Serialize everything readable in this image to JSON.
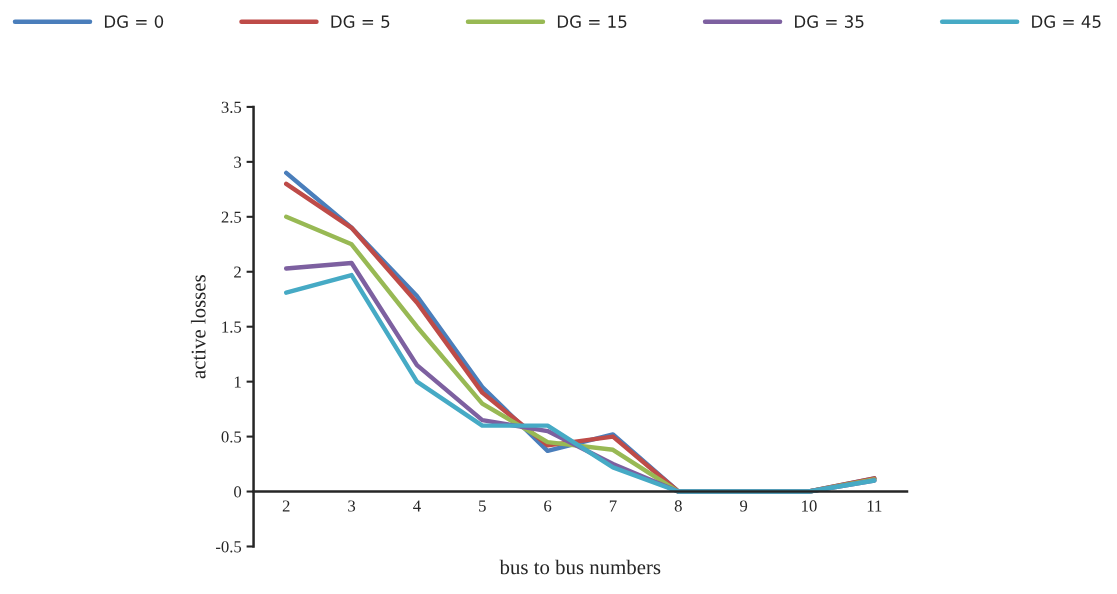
{
  "chart_data": {
    "type": "line",
    "xlabel": "bus to bus numbers",
    "ylabel": "active losses",
    "categories": [
      "2",
      "3",
      "4",
      "5",
      "6",
      "7",
      "8",
      "9",
      "10",
      "11"
    ],
    "series": [
      {
        "name": "DG = 0",
        "color": "#4a7ebb",
        "values": [
          2.9,
          2.4,
          1.78,
          0.95,
          0.37,
          0.52,
          0,
          0,
          0,
          0.12
        ]
      },
      {
        "name": "DG = 5",
        "color": "#be4b48",
        "values": [
          2.8,
          2.4,
          1.72,
          0.9,
          0.42,
          0.5,
          0,
          0,
          0,
          0.12
        ]
      },
      {
        "name": "DG = 15",
        "color": "#98b954",
        "values": [
          2.5,
          2.25,
          1.5,
          0.8,
          0.45,
          0.38,
          0,
          0,
          0,
          0.11
        ]
      },
      {
        "name": "DG = 35",
        "color": "#7d60a0",
        "values": [
          2.03,
          2.08,
          1.15,
          0.65,
          0.55,
          0.25,
          0,
          0,
          0,
          0.1
        ]
      },
      {
        "name": "DG = 45",
        "color": "#46aac5",
        "values": [
          1.81,
          1.97,
          1.0,
          0.6,
          0.6,
          0.22,
          0,
          0,
          0,
          0.1
        ]
      }
    ],
    "ylim": [
      -0.5,
      3.5
    ],
    "yticks": [
      -0.5,
      0,
      0.5,
      1,
      1.5,
      2,
      2.5,
      3,
      3.5
    ],
    "grid": false,
    "legend": "top"
  }
}
